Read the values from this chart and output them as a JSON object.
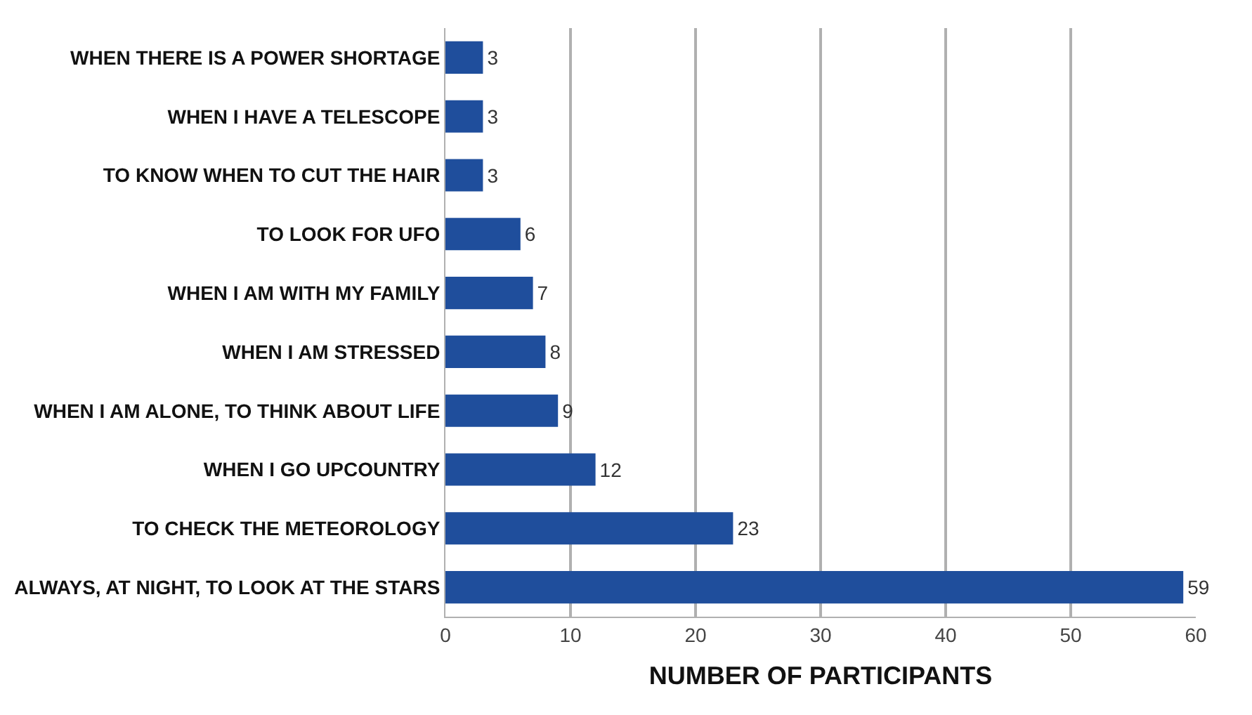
{
  "chart_data": {
    "type": "bar",
    "orientation": "horizontal",
    "xlabel": "NUMBER OF PARTICIPANTS",
    "categories": [
      "WHEN THERE IS A POWER SHORTAGE",
      "WHEN I HAVE A TELESCOPE",
      "TO KNOW WHEN TO CUT THE HAIR",
      "TO LOOK FOR UFO",
      "WHEN I AM WITH MY FAMILY",
      "WHEN I AM STRESSED",
      "WHEN I AM ALONE, TO THINK ABOUT LIFE",
      "WHEN I GO UPCOUNTRY",
      "TO CHECK THE METEOROLOGY",
      "ALWAYS, AT NIGHT, TO LOOK AT THE STARS"
    ],
    "values": [
      3,
      3,
      3,
      6,
      7,
      8,
      9,
      12,
      23,
      59
    ],
    "color": "#1f4e9c",
    "xlim": [
      0,
      60
    ],
    "xticks": [
      0,
      10,
      20,
      30,
      40,
      50,
      60
    ],
    "grid": "x",
    "data_labels": true,
    "legend": false
  }
}
